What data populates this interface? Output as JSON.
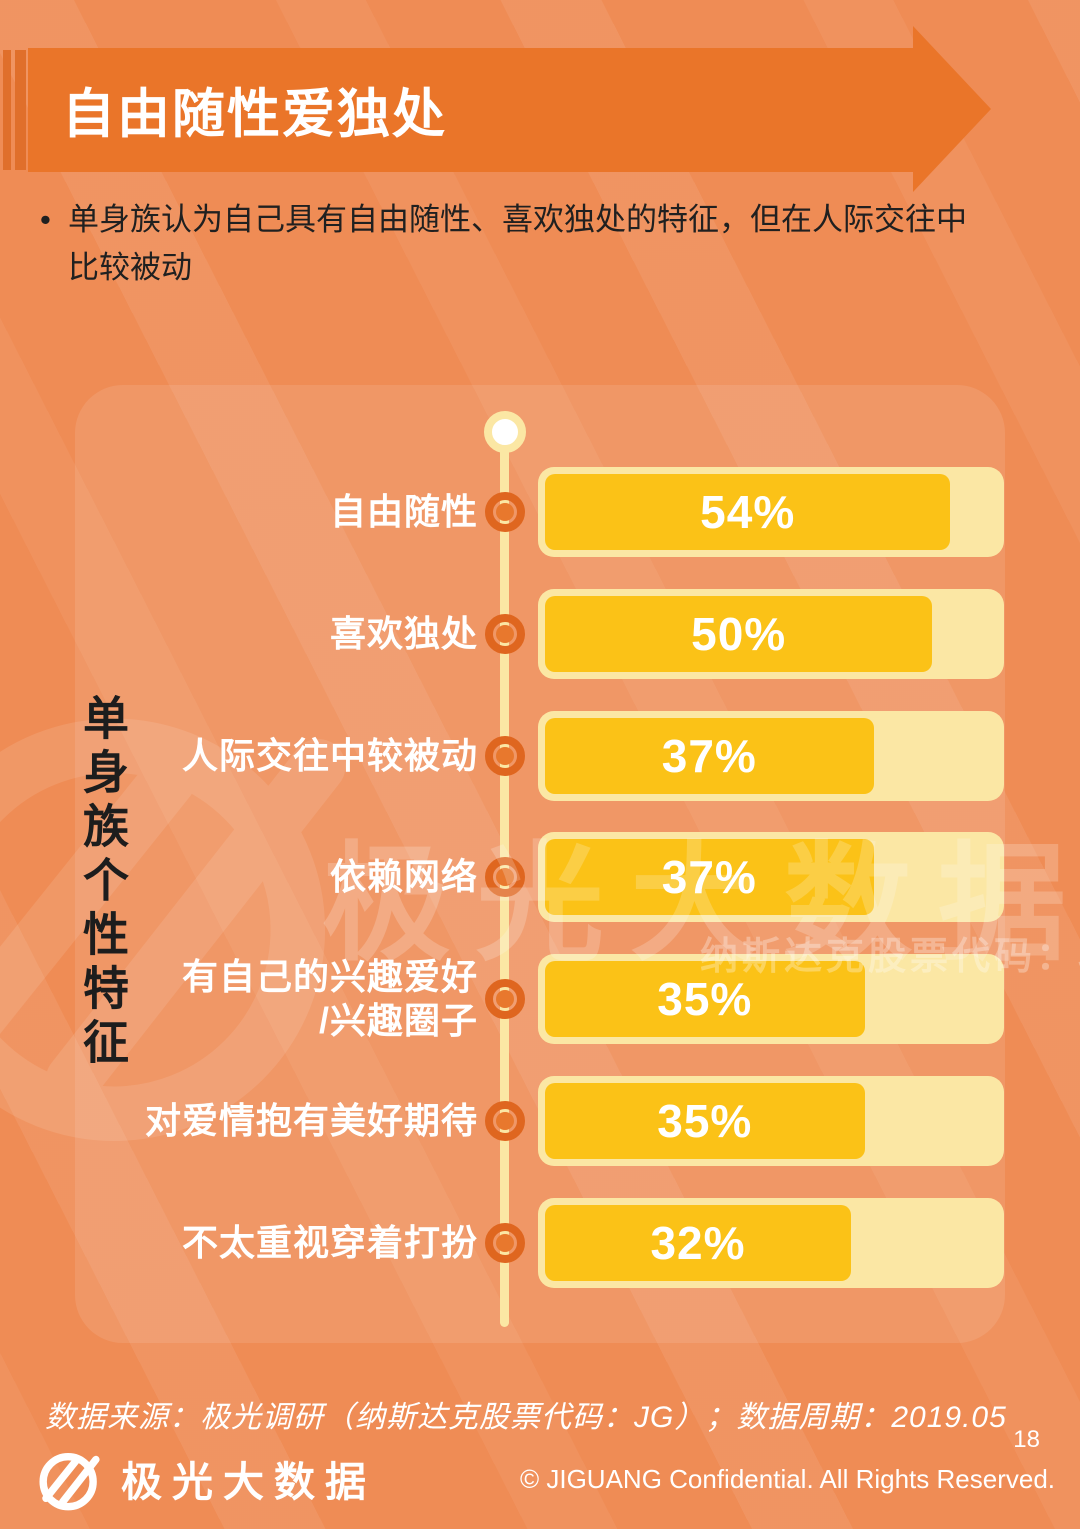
{
  "header": {
    "title": "自由随性爱独处"
  },
  "bullet": {
    "marker": "•",
    "lines": [
      "单身族认为自己具有自由随性、喜欢独处的特征，但在人际交往中",
      "比较被动"
    ]
  },
  "chart_data": {
    "type": "bar",
    "orientation": "horizontal",
    "title": "单身族个性特征",
    "categories": [
      "自由随性",
      "喜欢独处",
      "人际交往中较被动",
      "依赖网络",
      "有自己的兴趣爱好\n/兴趣圈子",
      "对爱情抱有美好期待",
      "不太重视穿着打扮"
    ],
    "values": [
      54,
      50,
      37,
      37,
      35,
      35,
      32
    ],
    "unit": "%",
    "legend": null,
    "grid": false,
    "bar_color": "#FBC217",
    "track_color": "#FBE7A4"
  },
  "watermark": {
    "brand": "极光大数据",
    "subtitle": "纳斯达克股票代码：JG"
  },
  "footer": {
    "source": "数据来源：极光调研（纳斯达克股票代码：JG）；数据周期：2019.05",
    "brand": "极光大数据",
    "page_number": "18",
    "copyright": "© JIGUANG Confidential. All Rights Reserved."
  },
  "colors": {
    "background": "#EF8C55",
    "banner": "#EA7529",
    "bar_fill": "#FBC217",
    "bar_track": "#FBE7A4",
    "node_ring": "#DF661F",
    "node_dot": "#E8782D",
    "text_dark": "#202020",
    "text_light": "#FFFFFF"
  }
}
